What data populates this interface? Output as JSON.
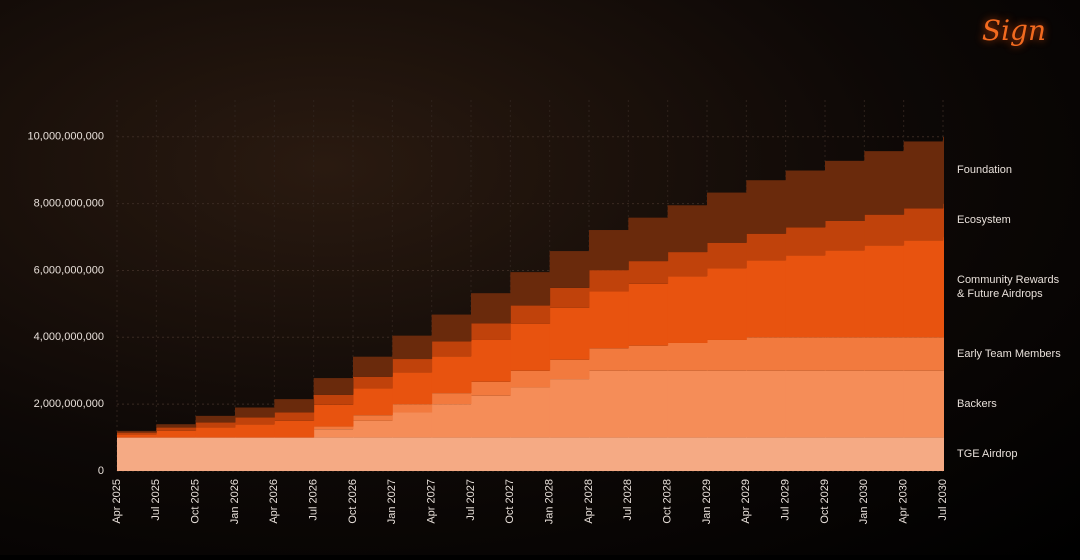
{
  "logo": "Sign",
  "chart_data": {
    "type": "stepped-stacked-area",
    "categories": [
      "Apr 2025",
      "Jul 2025",
      "Oct 2025",
      "Jan 2026",
      "Apr 2026",
      "Jul 2026",
      "Oct 2026",
      "Jan 2027",
      "Apr 2027",
      "Jul 2027",
      "Oct 2027",
      "Jan 2028",
      "Apr 2028",
      "Jul 2028",
      "Oct 2028",
      "Jan 2029",
      "Apr 2029",
      "Jul 2029",
      "Oct 2029",
      "Jan 2030",
      "Apr 2030",
      "Jul 2030"
    ],
    "ylim": [
      0,
      11100000000
    ],
    "yticks": [
      0,
      {
        "value": 2000000000,
        "label": "2,000,000,000"
      },
      {
        "value": 4000000000,
        "label": "4,000,000,000"
      },
      {
        "value": 6000000000,
        "label": "6,000,000,000"
      },
      {
        "value": 8000000000,
        "label": "8,000,000,000"
      },
      {
        "value": 10000000000,
        "label": "10,000,000,000"
      }
    ],
    "grid": true,
    "series": [
      {
        "name": "TGE Airdrop",
        "color": "#f5aa84",
        "values": [
          1000000000,
          1000000000,
          1000000000,
          1000000000,
          1000000000,
          1000000000,
          1000000000,
          1000000000,
          1000000000,
          1000000000,
          1000000000,
          1000000000,
          1000000000,
          1000000000,
          1000000000,
          1000000000,
          1000000000,
          1000000000,
          1000000000,
          1000000000,
          1000000000,
          1000000000
        ]
      },
      {
        "name": "Backers",
        "color": "#f58d58",
        "values": [
          0,
          0,
          0,
          0,
          0,
          250000000,
          500000000,
          750000000,
          1000000000,
          1250000000,
          1500000000,
          1750000000,
          2000000000,
          2000000000,
          2000000000,
          2000000000,
          2000000000,
          2000000000,
          2000000000,
          2000000000,
          2000000000,
          2000000000
        ]
      },
      {
        "name": "Early Team Members",
        "color": "#f27a3e",
        "values": [
          0,
          0,
          0,
          0,
          0,
          80000000,
          170000000,
          250000000,
          330000000,
          420000000,
          500000000,
          580000000,
          670000000,
          750000000,
          830000000,
          920000000,
          1000000000,
          1000000000,
          1000000000,
          1000000000,
          1000000000,
          1000000000
        ]
      },
      {
        "name": "Community Rewards & Future Airdrops",
        "color": "#e8530f",
        "values": [
          100000000,
          200000000,
          300000000,
          400000000,
          500000000,
          650000000,
          800000000,
          950000000,
          1100000000,
          1250000000,
          1400000000,
          1550000000,
          1700000000,
          1850000000,
          2000000000,
          2150000000,
          2300000000,
          2450000000,
          2600000000,
          2750000000,
          2900000000,
          3000000000
        ]
      },
      {
        "name": "Ecosystem",
        "color": "#c0420b",
        "values": [
          50000000,
          100000000,
          150000000,
          200000000,
          250000000,
          300000000,
          350000000,
          400000000,
          450000000,
          500000000,
          550000000,
          600000000,
          640000000,
          680000000,
          720000000,
          760000000,
          800000000,
          840000000,
          880000000,
          920000000,
          960000000,
          1000000000
        ]
      },
      {
        "name": "Foundation",
        "color": "#6a2a0c",
        "values": [
          50000000,
          100000000,
          200000000,
          300000000,
          400000000,
          500000000,
          600000000,
          700000000,
          800000000,
          900000000,
          1000000000,
          1100000000,
          1200000000,
          1300000000,
          1400000000,
          1500000000,
          1600000000,
          1700000000,
          1800000000,
          1900000000,
          2000000000,
          2000000000
        ]
      }
    ]
  }
}
